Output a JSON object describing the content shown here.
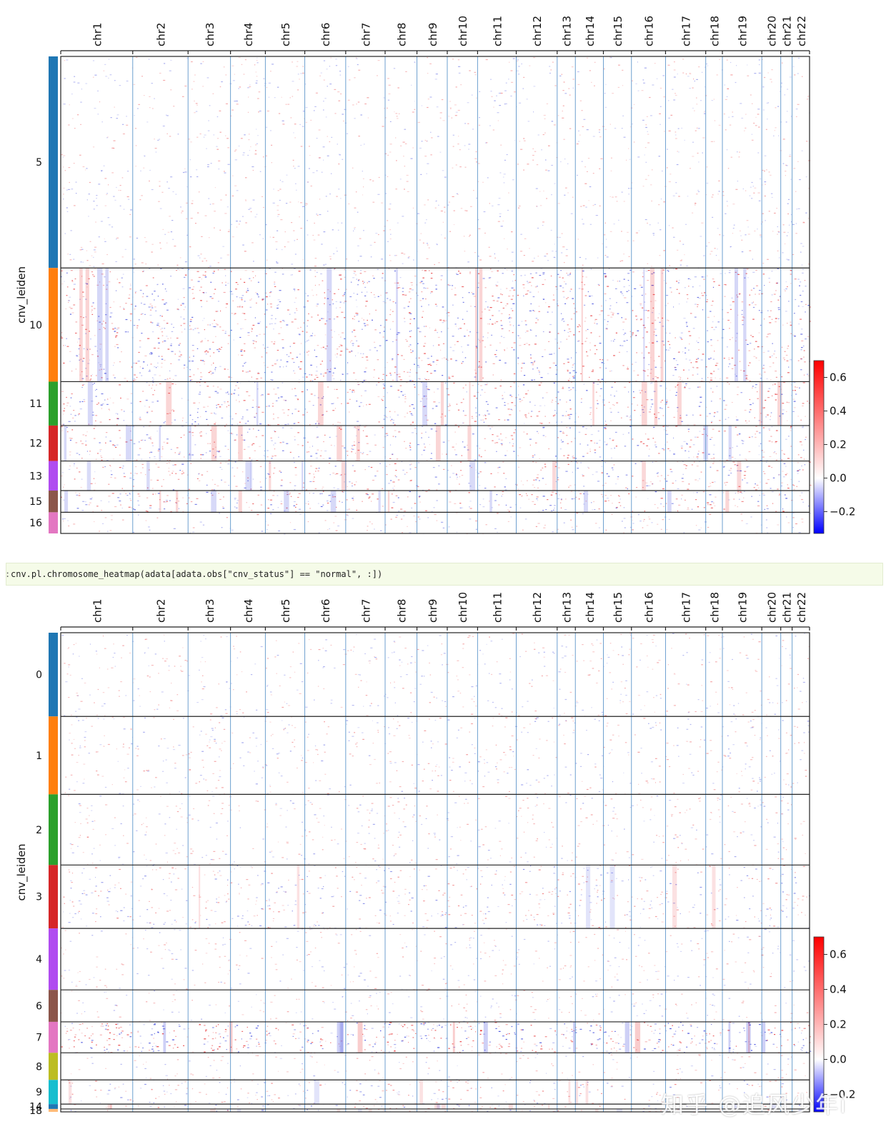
{
  "code": {
    "prompt": ":",
    "text": "cnv.pl.chromosome_heatmap(adata[adata.obs[\"cnv_status\"] == \"normal\", :])"
  },
  "watermark": "知乎 @追风少年i",
  "colors": {
    "red": "#e31a1c",
    "blue": "#1f2bd6",
    "grid": "#6ea0d0",
    "frame": "#222222"
  },
  "chart_data": [
    {
      "type": "heatmap",
      "title": "",
      "ylabel": "cnv_leiden",
      "xlabel": "",
      "chromosomes": [
        "chr1",
        "chr2",
        "chr3",
        "chr4",
        "chr5",
        "chr6",
        "chr7",
        "chr8",
        "chr9",
        "chr10",
        "chr11",
        "chr12",
        "chr13",
        "chr14",
        "chr15",
        "chr16",
        "chr17",
        "chr18",
        "chr19",
        "chr20",
        "chr21",
        "chr22"
      ],
      "chromosome_relative_lengths": [
        0.095,
        0.073,
        0.056,
        0.046,
        0.052,
        0.054,
        0.052,
        0.042,
        0.04,
        0.04,
        0.051,
        0.054,
        0.024,
        0.037,
        0.037,
        0.045,
        0.053,
        0.022,
        0.052,
        0.025,
        0.015,
        0.023
      ],
      "clusters": [
        {
          "label": "5",
          "color": "#1f77b4",
          "relative_size": 0.4,
          "intensity": 0.15
        },
        {
          "label": "10",
          "color": "#ff7f0e",
          "relative_size": 0.215,
          "intensity": 0.75
        },
        {
          "label": "11",
          "color": "#2ca02c",
          "relative_size": 0.083,
          "intensity": 0.7
        },
        {
          "label": "12",
          "color": "#d62728",
          "relative_size": 0.067,
          "intensity": 0.65
        },
        {
          "label": "13",
          "color": "#b04cf0",
          "relative_size": 0.056,
          "intensity": 0.6
        },
        {
          "label": "15",
          "color": "#8c564b",
          "relative_size": 0.041,
          "intensity": 0.7
        },
        {
          "label": "16",
          "color": "#e377c2",
          "relative_size": 0.04,
          "intensity": 0.2
        }
      ],
      "colorbar": {
        "ticks": [
          0.6,
          0.4,
          0.2,
          0.0,
          -0.2
        ],
        "tick_labels": [
          "0.6",
          "0.4",
          "0.2",
          "0.0",
          "−0.2"
        ],
        "vmin": -0.33,
        "vmax": 0.7
      },
      "value_range": [
        -0.33,
        0.7
      ]
    },
    {
      "type": "heatmap",
      "title": "",
      "ylabel": "cnv_leiden",
      "xlabel": "",
      "chromosomes": [
        "chr1",
        "chr2",
        "chr3",
        "chr4",
        "chr5",
        "chr6",
        "chr7",
        "chr8",
        "chr9",
        "chr10",
        "chr11",
        "chr12",
        "chr13",
        "chr14",
        "chr15",
        "chr16",
        "chr17",
        "chr18",
        "chr19",
        "chr20",
        "chr21",
        "chr22"
      ],
      "chromosome_relative_lengths": [
        0.095,
        0.073,
        0.056,
        0.046,
        0.052,
        0.054,
        0.052,
        0.042,
        0.04,
        0.04,
        0.051,
        0.054,
        0.024,
        0.037,
        0.037,
        0.045,
        0.053,
        0.022,
        0.052,
        0.025,
        0.015,
        0.023
      ],
      "clusters": [
        {
          "label": "0",
          "color": "#1f77b4",
          "relative_size": 0.173,
          "intensity": 0.12
        },
        {
          "label": "1",
          "color": "#ff7f0e",
          "relative_size": 0.161,
          "intensity": 0.18
        },
        {
          "label": "2",
          "color": "#2ca02c",
          "relative_size": 0.146,
          "intensity": 0.15
        },
        {
          "label": "3",
          "color": "#d62728",
          "relative_size": 0.131,
          "intensity": 0.35
        },
        {
          "label": "4",
          "color": "#b04cf0",
          "relative_size": 0.127,
          "intensity": 0.1
        },
        {
          "label": "6",
          "color": "#8c564b",
          "relative_size": 0.066,
          "intensity": 0.12
        },
        {
          "label": "7",
          "color": "#e377c2",
          "relative_size": 0.064,
          "intensity": 0.9
        },
        {
          "label": "8",
          "color": "#bcbd22",
          "relative_size": 0.056,
          "intensity": 0.08
        },
        {
          "label": "9",
          "color": "#17becf",
          "relative_size": 0.05,
          "intensity": 0.35
        },
        {
          "label": "14",
          "color": "#1f77b4",
          "relative_size": 0.01,
          "intensity": 0.5
        },
        {
          "label": "18",
          "color": "#ffbb78",
          "relative_size": 0.006,
          "intensity": 0.5
        }
      ],
      "colorbar": {
        "ticks": [
          0.6,
          0.4,
          0.2,
          0.0,
          -0.2
        ],
        "tick_labels": [
          "0.6",
          "0.4",
          "0.2",
          "0.0",
          "−0.2"
        ],
        "vmin": -0.3,
        "vmax": 0.7
      },
      "value_range": [
        -0.3,
        0.7
      ]
    }
  ]
}
